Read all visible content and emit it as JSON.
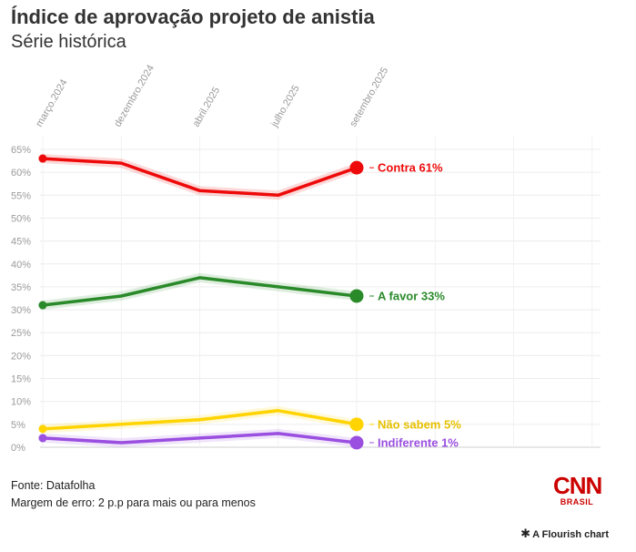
{
  "title": "Índice de aprovação projeto de anistia",
  "subtitle": "Série histórica",
  "footer": {
    "source": "Fonte: Datafolha",
    "margin": "Margem de erro: 2 p.p para mais ou para menos"
  },
  "logo": {
    "main": "CNN",
    "sub": "BRASIL"
  },
  "credit": "A Flourish chart",
  "chart_data": {
    "type": "line",
    "categories": [
      "março.2024",
      "dezembro.2024",
      "abril.2025",
      "julho.2025",
      "setembro.2025"
    ],
    "ylim": [
      0,
      65
    ],
    "yticks": [
      "0%",
      "5%",
      "10%",
      "15%",
      "20%",
      "25%",
      "30%",
      "35%",
      "40%",
      "45%",
      "50%",
      "55%",
      "60%",
      "65%"
    ],
    "grid": true,
    "series": [
      {
        "name": "Contra",
        "label": "Contra 61%",
        "values": [
          63,
          62,
          56,
          55,
          61
        ],
        "color": "#ee0a0a"
      },
      {
        "name": "A favor",
        "label": "A favor 33%",
        "values": [
          31,
          33,
          37,
          35,
          33
        ],
        "color": "#2a8a2a"
      },
      {
        "name": "Não sabem",
        "label": "Não sabem 5%",
        "values": [
          4,
          5,
          6,
          8,
          5
        ],
        "color": "#ffd400"
      },
      {
        "name": "Indiferente",
        "label": "Indiferente 1%",
        "values": [
          2,
          1,
          2,
          3,
          1
        ],
        "color": "#9a4fe0"
      }
    ]
  }
}
